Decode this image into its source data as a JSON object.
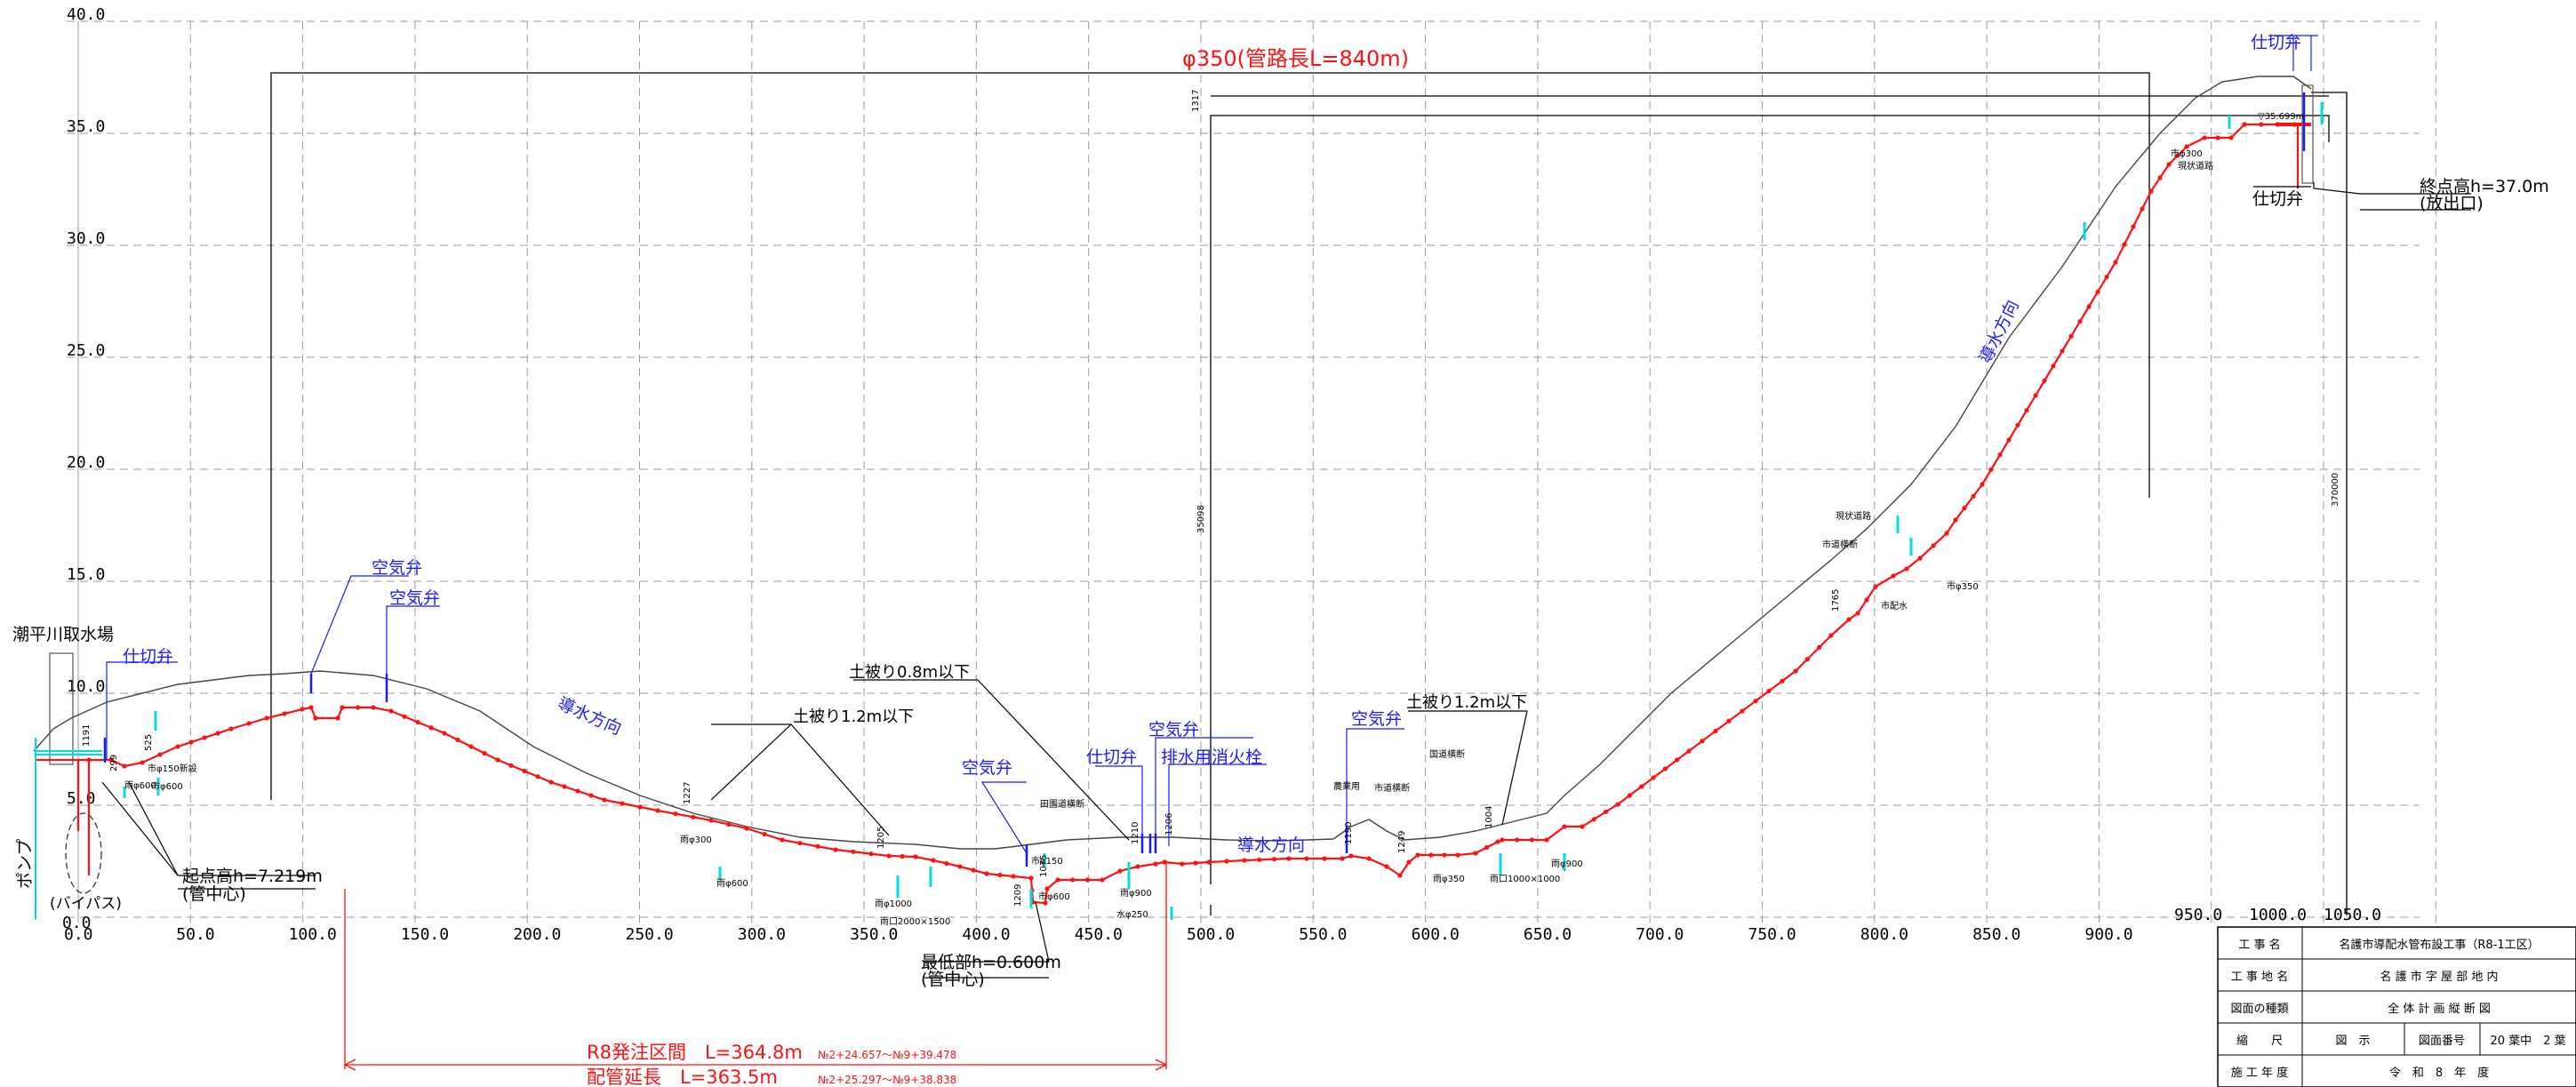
{
  "colors": {
    "pipe": "#ff1111",
    "ground": "#444444",
    "grid": "#9a9a9a",
    "valve_label": "#1a1aff",
    "existing_pipe": "#00dddd",
    "annotation": "#000000",
    "dimension": "#000000"
  },
  "axes": {
    "y_ticks": [
      "40.0",
      "35.0",
      "30.0",
      "25.0",
      "20.0",
      "15.0",
      "10.0",
      "5.0",
      "0.0"
    ],
    "x_ticks": [
      "0.0",
      "50.0",
      "100.0",
      "150.0",
      "200.0",
      "250.0",
      "300.0",
      "350.0",
      "400.0",
      "450.0",
      "500.0",
      "550.0",
      "600.0",
      "650.0",
      "700.0",
      "750.0",
      "800.0",
      "850.0",
      "900.0"
    ],
    "x_ticks_far": [
      "950.0",
      "1000.0",
      "1050.0"
    ]
  },
  "header": {
    "pipe_title": "φ350(管路長L=840m)"
  },
  "labels": {
    "intake": "潮平川取水場",
    "pump": "ポンプ",
    "bypass": "(バイパス)",
    "gate_valve_1": "仕切弁",
    "gate_valve_2": "仕切弁",
    "gate_valve_3": "仕切弁",
    "gate_valve_4": "仕切弁",
    "air_valve_1": "空気弁",
    "air_valve_2": "空気弁",
    "air_valve_3": "空気弁",
    "air_valve_4": "空気弁",
    "air_valve_5": "空気弁",
    "drain_hydrant": "排水用消火栓",
    "flow_dir_1": "導水方向",
    "flow_dir_2": "導水方向",
    "flow_dir_3": "導水方向",
    "cover_08": "土被り0.8m以下",
    "cover_12a": "土被り1.2m以下",
    "cover_12b": "土被り1.2m以下",
    "start_height": "起点高h=7.219m",
    "start_sub": "(管中心)",
    "lowest": "最低部h=0.600m",
    "lowest_sub": "(管中心)",
    "end_height": "終点高h=37.0m",
    "end_sub": "(放出口)",
    "r8_section": "R8発注区間　L=364.8m",
    "r8_section_sub": "№2+24.657～№9+39.478",
    "pipe_length": "配管延長　L=363.5m",
    "pipe_length_sub": "№2+25.297～№9+38.838"
  },
  "small_labels": [
    "市φ150新設",
    "雨φ600",
    "市φ600",
    "雨φ300",
    "雨φ600",
    "雨φ1000",
    "雨口2000×1500",
    "市φ150",
    "市φ600",
    "雨φ900",
    "水φ250",
    "田園道横断",
    "農業用",
    "市道横断",
    "国道横断",
    "雨φ350",
    "雨口1000×1000",
    "雨φ900",
    "市道横断",
    "現状道路",
    "市φ350",
    "市配水",
    "市φ300",
    "現状道路",
    "▽35.699m",
    "1317",
    "35098",
    "370000",
    "1191",
    "299",
    "525",
    "1205",
    "1227",
    "1209",
    "1075",
    "1210",
    "1206",
    "1190",
    "1004",
    "1249",
    "1765"
  ],
  "title_block": {
    "rows": [
      {
        "label": "工 事 名",
        "value": "名護市導配水管布設工事（R8-1工区）"
      },
      {
        "label": "工 事 地 名",
        "value": "名 護 市 字 屋 部 地 内"
      },
      {
        "label": "図面の種類",
        "value": "全 体 計 画 縦 断 図"
      },
      {
        "label": "縮　　尺",
        "value": "図　示",
        "extra_label": "図面番号",
        "extra_value": "20 葉中　2 葉"
      },
      {
        "label": "施 工 年 度",
        "value": "令　和　8　年　度"
      }
    ]
  }
}
